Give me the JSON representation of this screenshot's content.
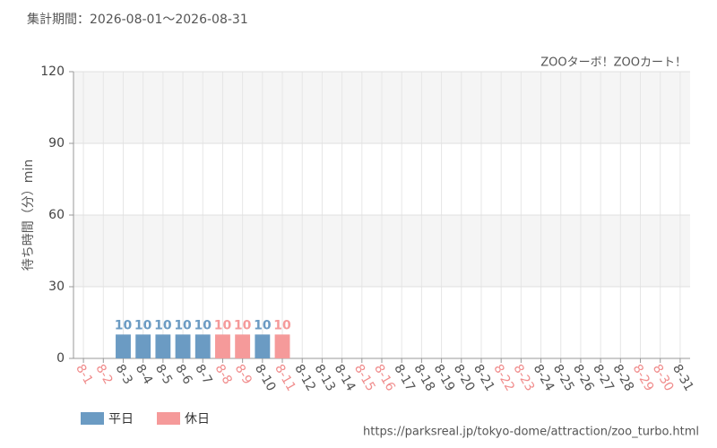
{
  "chart_data": {
    "type": "bar",
    "title": "集計期間：2026-08-01～2026-08-31",
    "subtitle": "ZOOターボ！ZOOカート！",
    "y_label": "待ち時間（分）min",
    "source": "https://parksreal.jp/tokyo-dome/attraction/zoo_turbo.html",
    "categories": [
      "8-1",
      "8-2",
      "8-3",
      "8-4",
      "8-5",
      "8-6",
      "8-7",
      "8-8",
      "8-9",
      "8-10",
      "8-11",
      "8-12",
      "8-13",
      "8-14",
      "8-15",
      "8-16",
      "8-17",
      "8-18",
      "8-19",
      "8-20",
      "8-21",
      "8-22",
      "8-23",
      "8-24",
      "8-25",
      "8-26",
      "8-27",
      "8-28",
      "8-29",
      "8-30",
      "8-31"
    ],
    "category_colors": [
      "#f08c8c",
      "#f08c8c",
      "#555555",
      "#555555",
      "#555555",
      "#555555",
      "#555555",
      "#f08c8c",
      "#f08c8c",
      "#555555",
      "#f08c8c",
      "#555555",
      "#555555",
      "#555555",
      "#f08c8c",
      "#f08c8c",
      "#555555",
      "#555555",
      "#555555",
      "#555555",
      "#555555",
      "#f08c8c",
      "#f08c8c",
      "#555555",
      "#555555",
      "#555555",
      "#555555",
      "#555555",
      "#f08c8c",
      "#f08c8c",
      "#555555"
    ],
    "series": [
      {
        "name": "平日",
        "color": "#6b9bc3",
        "values": [
          null,
          null,
          10,
          10,
          10,
          10,
          10,
          null,
          null,
          10,
          null,
          null,
          null,
          null,
          null,
          null,
          null,
          null,
          null,
          null,
          null,
          null,
          null,
          null,
          null,
          null,
          null,
          null,
          null,
          null,
          null
        ]
      },
      {
        "name": "休日",
        "color": "#f59a9a",
        "values": [
          null,
          null,
          null,
          null,
          null,
          null,
          null,
          10,
          10,
          null,
          10,
          null,
          null,
          null,
          null,
          null,
          null,
          null,
          null,
          null,
          null,
          null,
          null,
          null,
          null,
          null,
          null,
          null,
          null,
          null,
          null
        ]
      }
    ],
    "ylim": [
      0,
      120
    ],
    "yticks": [
      0,
      30,
      60,
      90,
      120
    ],
    "grid": true,
    "legend": "bottom-left"
  }
}
